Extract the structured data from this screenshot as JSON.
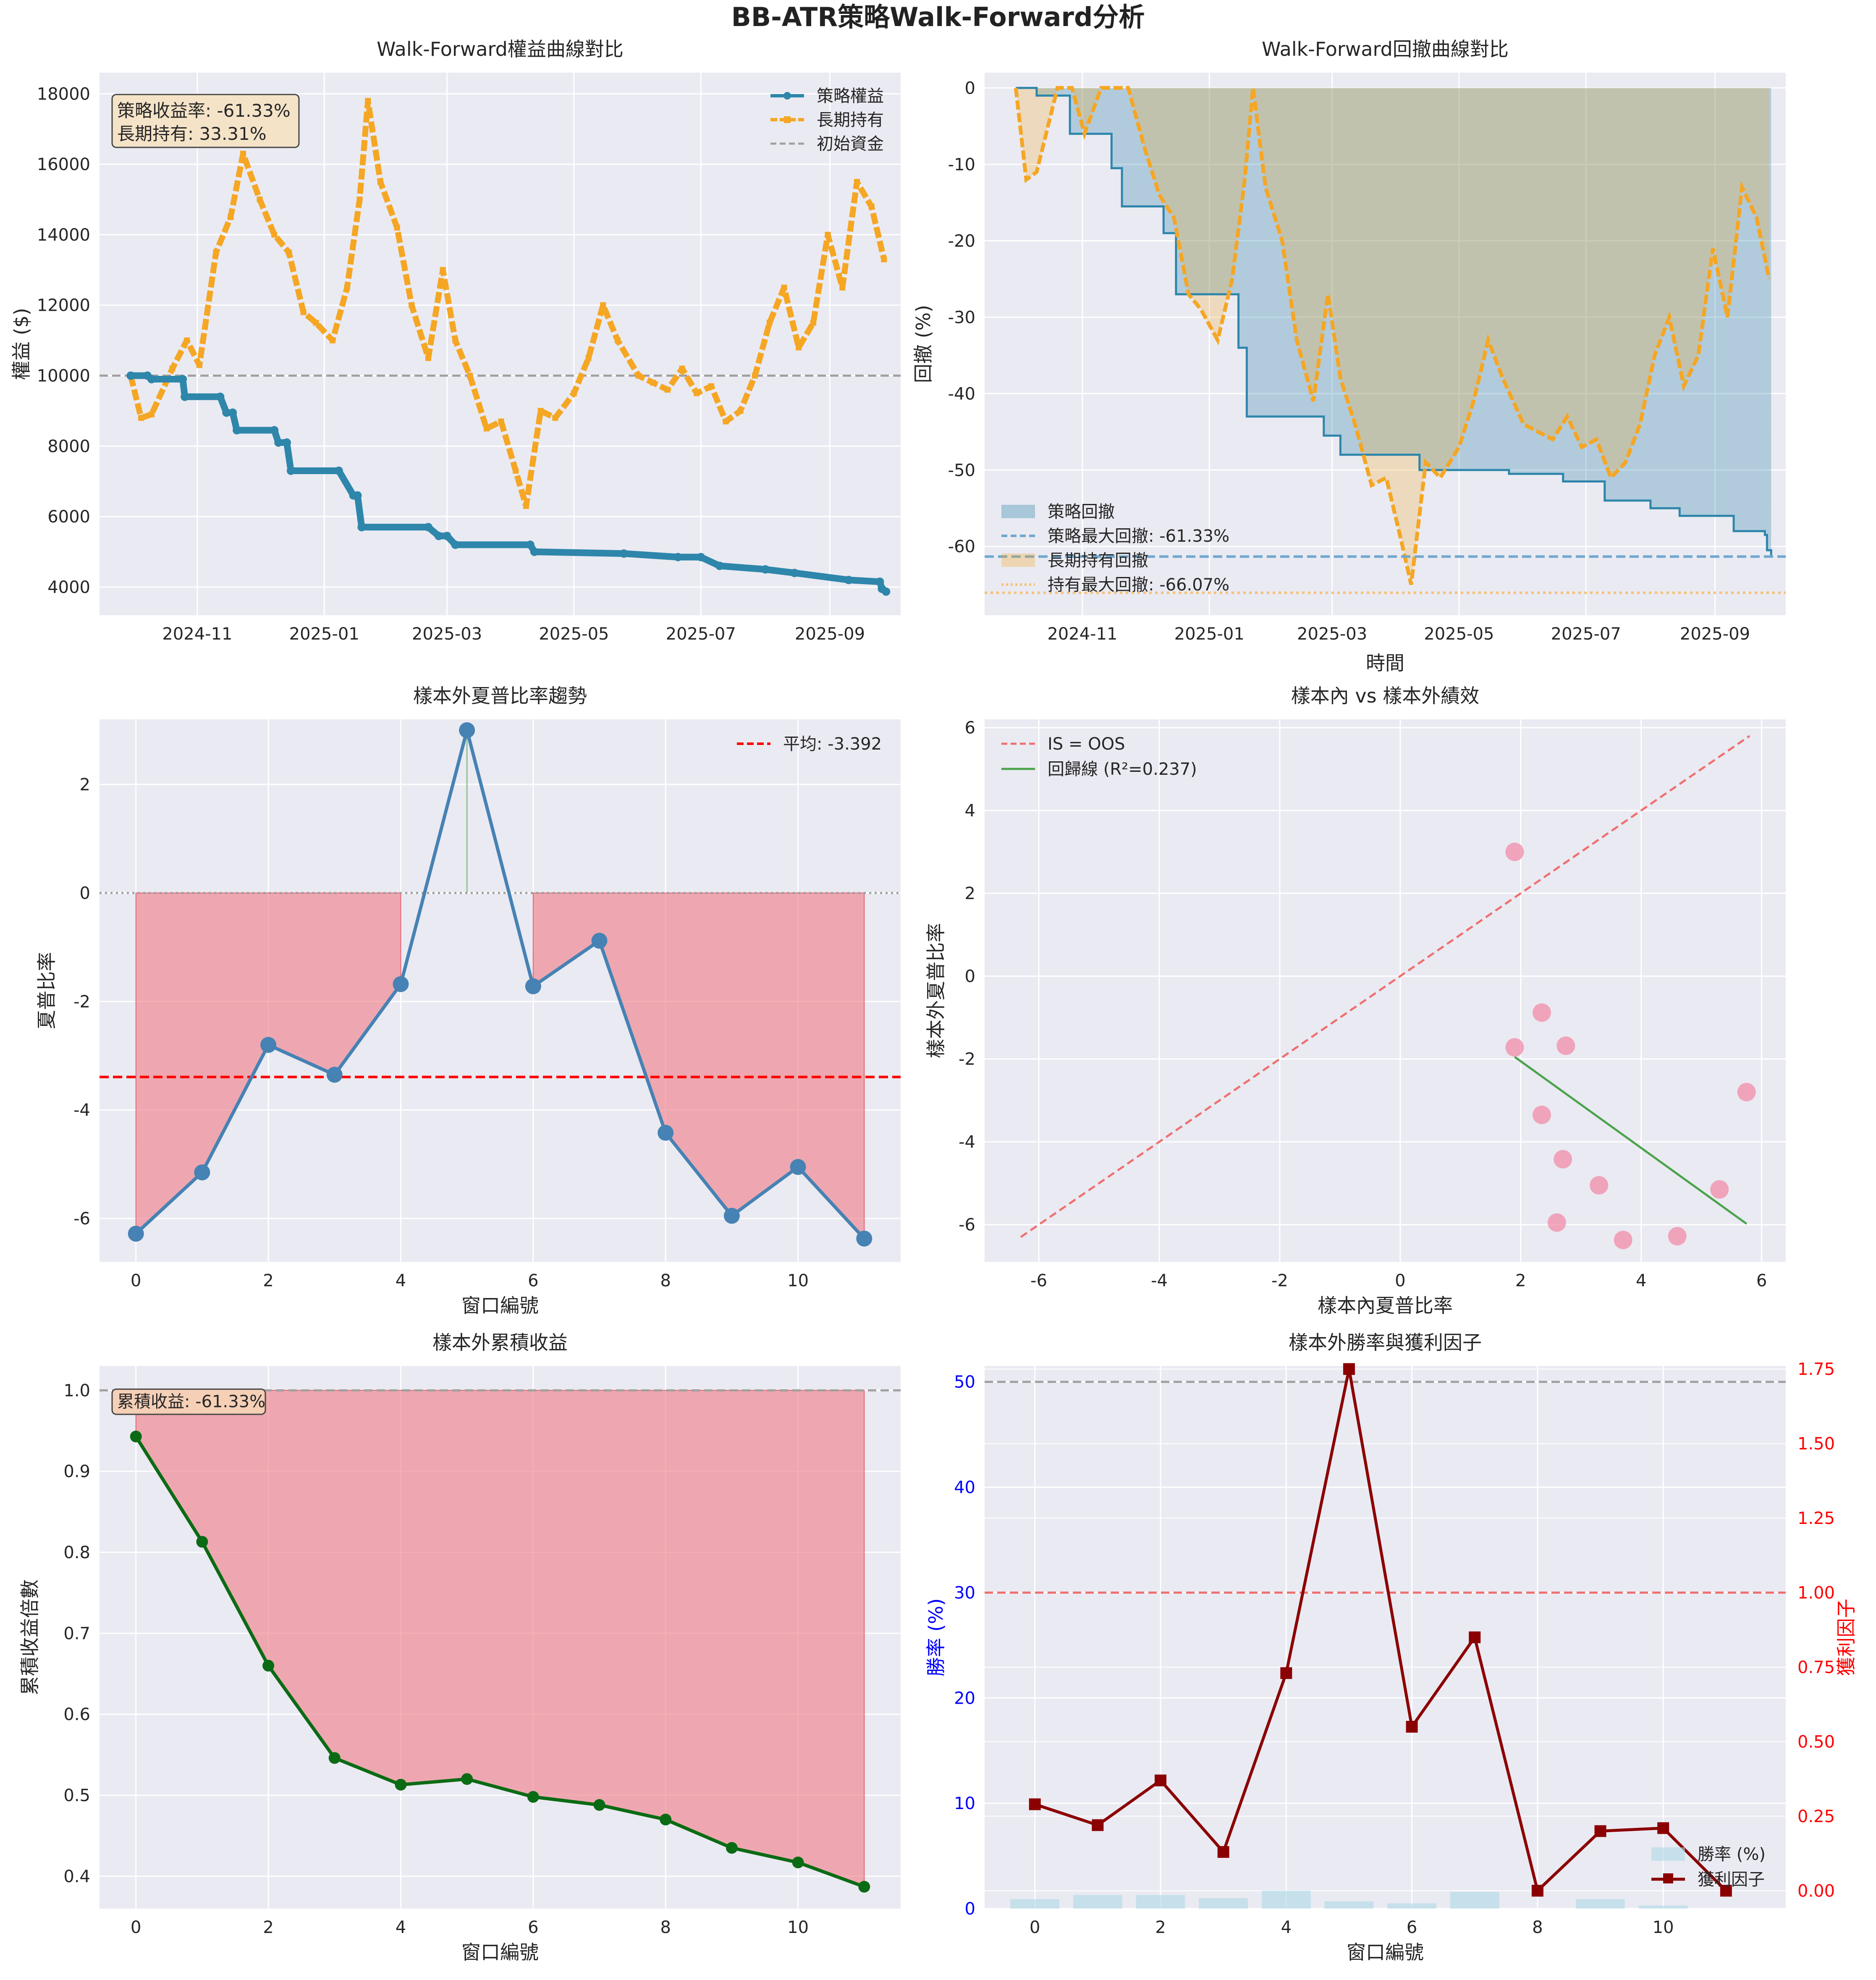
{
  "figure_title": "BB-ATR策略Walk-Forward分析",
  "chart_data": [
    {
      "id": "equity",
      "type": "line",
      "title": "Walk-Forward權益曲線對比",
      "xlabel": "",
      "ylabel": "權益 ($)",
      "x_range": [
        "2024-09-15",
        "2025-10-05"
      ],
      "x_ticks": [
        "2024-11",
        "2025-01",
        "2025-03",
        "2025-05",
        "2025-07",
        "2025-09"
      ],
      "ylim": [
        3200,
        18600
      ],
      "y_ticks": [
        4000,
        6000,
        8000,
        10000,
        12000,
        14000,
        16000,
        18000
      ],
      "grid": true,
      "legend": "top-right",
      "annotation": "策略收益率: -61.33%\n長期持有: 33.31%",
      "series": [
        {
          "name": "策略權益",
          "style": "solid-dot",
          "color": "#2e86ab",
          "x": [
            "2024-09-30",
            "2024-10-08",
            "2024-10-10",
            "2024-10-25",
            "2024-10-26",
            "2024-11-12",
            "2024-11-15",
            "2024-11-18",
            "2024-11-20",
            "2024-12-08",
            "2024-12-10",
            "2024-12-14",
            "2024-12-16",
            "2025-01-08",
            "2025-01-15",
            "2025-01-17",
            "2025-01-19",
            "2025-02-20",
            "2025-02-25",
            "2025-03-01",
            "2025-03-05",
            "2025-04-10",
            "2025-04-12",
            "2025-05-25",
            "2025-06-20",
            "2025-07-01",
            "2025-07-10",
            "2025-08-01",
            "2025-08-15",
            "2025-09-10",
            "2025-09-25",
            "2025-09-26",
            "2025-09-28"
          ],
          "values": [
            10000,
            10000,
            9900,
            9900,
            9400,
            9400,
            8950,
            8950,
            8450,
            8450,
            8100,
            8100,
            7300,
            7300,
            6600,
            6600,
            5700,
            5700,
            5450,
            5450,
            5200,
            5200,
            5000,
            4950,
            4850,
            4850,
            4600,
            4500,
            4400,
            4200,
            4150,
            3950,
            3870
          ]
        },
        {
          "name": "長期持有",
          "style": "dashed-square",
          "color": "#f5a623",
          "x": [
            "2024-09-30",
            "2024-10-05",
            "2024-10-10",
            "2024-10-20",
            "2024-10-27",
            "2024-11-02",
            "2024-11-10",
            "2024-11-17",
            "2024-11-23",
            "2024-12-01",
            "2024-12-08",
            "2024-12-15",
            "2024-12-22",
            "2024-12-28",
            "2025-01-05",
            "2025-01-12",
            "2025-01-18",
            "2025-01-22",
            "2025-01-28",
            "2025-02-05",
            "2025-02-12",
            "2025-02-20",
            "2025-02-27",
            "2025-03-05",
            "2025-03-12",
            "2025-03-20",
            "2025-03-27",
            "2025-04-03",
            "2025-04-08",
            "2025-04-15",
            "2025-04-22",
            "2025-05-01",
            "2025-05-08",
            "2025-05-15",
            "2025-05-22",
            "2025-06-01",
            "2025-06-08",
            "2025-06-15",
            "2025-06-22",
            "2025-06-29",
            "2025-07-06",
            "2025-07-13",
            "2025-07-20",
            "2025-07-27",
            "2025-08-03",
            "2025-08-10",
            "2025-08-17",
            "2025-08-24",
            "2025-08-31",
            "2025-09-07",
            "2025-09-14",
            "2025-09-21",
            "2025-09-27"
          ],
          "values": [
            10000,
            8800,
            8900,
            10200,
            11000,
            10300,
            13500,
            14500,
            16300,
            15000,
            14000,
            13500,
            11800,
            11500,
            11000,
            12500,
            15000,
            17800,
            15500,
            14200,
            12000,
            10500,
            13000,
            11000,
            10000,
            8500,
            8700,
            7300,
            6300,
            9000,
            8800,
            9500,
            10500,
            12000,
            11000,
            10000,
            9800,
            9600,
            10200,
            9500,
            9700,
            8700,
            9000,
            10000,
            11500,
            12500,
            10800,
            11500,
            14000,
            12500,
            15500,
            14800,
            13300
          ]
        }
      ],
      "reference_line": {
        "name": "初始資金",
        "value": 10000,
        "color": "#a0a0a0",
        "style": "dashed"
      }
    },
    {
      "id": "drawdown",
      "type": "area",
      "title": "Walk-Forward回撤曲線對比",
      "xlabel": "時間",
      "ylabel": "回撤 (%)",
      "x_range": [
        "2024-09-15",
        "2025-10-05"
      ],
      "x_ticks": [
        "2024-11",
        "2025-01",
        "2025-03",
        "2025-05",
        "2025-07",
        "2025-09"
      ],
      "ylim": [
        -69,
        2
      ],
      "y_ticks": [
        -60,
        -50,
        -40,
        -30,
        -20,
        -10,
        0
      ],
      "grid": true,
      "legend": "bottom-left",
      "series": [
        {
          "name": "策略回撤",
          "color": "#2e86ab",
          "x": [
            "2024-09-30",
            "2024-10-08",
            "2024-10-10",
            "2024-10-25",
            "2024-10-26",
            "2024-11-12",
            "2024-11-15",
            "2024-11-18",
            "2024-11-20",
            "2024-12-08",
            "2024-12-10",
            "2024-12-14",
            "2024-12-16",
            "2025-01-08",
            "2025-01-15",
            "2025-01-17",
            "2025-01-19",
            "2025-02-20",
            "2025-02-25",
            "2025-03-01",
            "2025-03-05",
            "2025-04-10",
            "2025-04-12",
            "2025-05-25",
            "2025-06-20",
            "2025-07-01",
            "2025-07-10",
            "2025-08-01",
            "2025-08-15",
            "2025-09-10",
            "2025-09-25",
            "2025-09-26",
            "2025-09-28"
          ],
          "values": [
            0,
            0,
            -1,
            -1,
            -6,
            -6,
            -10.5,
            -10.5,
            -15.5,
            -15.5,
            -19,
            -19,
            -27,
            -27,
            -34,
            -34,
            -43,
            -43,
            -45.5,
            -45.5,
            -48,
            -48,
            -50,
            -50.5,
            -51.5,
            -51.5,
            -54,
            -55,
            -56,
            -58,
            -58.5,
            -60.5,
            -61.33
          ]
        },
        {
          "name": "長期持有回撤",
          "color": "#f5a623",
          "x": [
            "2024-09-30",
            "2024-10-05",
            "2024-10-10",
            "2024-10-20",
            "2024-10-27",
            "2024-11-02",
            "2024-11-10",
            "2024-11-17",
            "2024-11-23",
            "2024-12-01",
            "2024-12-08",
            "2024-12-15",
            "2024-12-22",
            "2024-12-28",
            "2025-01-05",
            "2025-01-12",
            "2025-01-18",
            "2025-01-22",
            "2025-01-28",
            "2025-02-05",
            "2025-02-12",
            "2025-02-20",
            "2025-02-27",
            "2025-03-05",
            "2025-03-12",
            "2025-03-20",
            "2025-03-27",
            "2025-04-03",
            "2025-04-08",
            "2025-04-15",
            "2025-04-22",
            "2025-05-01",
            "2025-05-08",
            "2025-05-15",
            "2025-05-22",
            "2025-06-01",
            "2025-06-08",
            "2025-06-15",
            "2025-06-22",
            "2025-06-29",
            "2025-07-06",
            "2025-07-13",
            "2025-07-20",
            "2025-07-27",
            "2025-08-03",
            "2025-08-10",
            "2025-08-17",
            "2025-08-24",
            "2025-08-31",
            "2025-09-07",
            "2025-09-14",
            "2025-09-21",
            "2025-09-27"
          ],
          "values": [
            0,
            -12,
            -11,
            0,
            0,
            -6,
            0,
            0,
            0,
            -8,
            -14,
            -17,
            -27,
            -29,
            -33,
            -25,
            -12,
            0,
            -13,
            -20,
            -33,
            -41,
            -27,
            -38,
            -44,
            -52,
            -51,
            -59,
            -65,
            -49,
            -51,
            -47,
            -41,
            -33,
            -38,
            -44,
            -45,
            -46,
            -43,
            -47,
            -46,
            -51,
            -49,
            -44,
            -35,
            -30,
            -39,
            -35,
            -21,
            -30,
            -13,
            -17,
            -25
          ]
        }
      ],
      "reference_lines": [
        {
          "name": "策略最大回撤: -61.33%",
          "value": -61.33,
          "color": "#6fa8cf",
          "style": "dashed"
        },
        {
          "name": "持有最大回撤: -66.07%",
          "value": -66.07,
          "color": "#f5c27a",
          "style": "dotted"
        }
      ]
    },
    {
      "id": "oos_sharpe",
      "type": "line",
      "title": "樣本外夏普比率趨勢",
      "xlabel": "窗口編號",
      "ylabel": "夏普比率",
      "xlim": [
        -0.55,
        11.55
      ],
      "x_ticks": [
        0,
        2,
        4,
        6,
        8,
        10
      ],
      "ylim": [
        -6.8,
        3.2
      ],
      "y_ticks": [
        -6,
        -4,
        -2,
        0,
        2
      ],
      "grid": true,
      "legend": "top-right",
      "x": [
        0,
        1,
        2,
        3,
        4,
        5,
        6,
        7,
        8,
        9,
        10,
        11
      ],
      "series": [
        {
          "name": "",
          "color": "#4682b4",
          "values": [
            -6.28,
            -5.15,
            -2.8,
            -3.35,
            -1.68,
            3.0,
            -1.72,
            -0.88,
            -4.42,
            -5.95,
            -5.05,
            -6.37
          ]
        }
      ],
      "reference_line": {
        "name": "平均: -3.392",
        "value": -3.392,
        "color": "#ff0000",
        "style": "dashed"
      }
    },
    {
      "id": "is_vs_oos",
      "type": "scatter",
      "title": "樣本內 vs 樣本外績效",
      "xlabel": "樣本內夏普比率",
      "ylabel": "樣本外夏普比率",
      "xlim": [
        -6.9,
        6.4
      ],
      "x_ticks": [
        -6,
        -4,
        -2,
        0,
        2,
        4,
        6
      ],
      "ylim": [
        -6.9,
        6.2
      ],
      "y_ticks": [
        -6,
        -4,
        -2,
        0,
        2,
        4,
        6
      ],
      "grid": true,
      "legend": "top-left",
      "points": {
        "color": "#f08ca8",
        "x": [
          1.9,
          2.35,
          1.9,
          2.75,
          2.35,
          2.7,
          3.3,
          5.3,
          5.75,
          2.6,
          3.7,
          4.6
        ],
        "y": [
          3.0,
          -0.88,
          -1.72,
          -1.68,
          -3.35,
          -4.42,
          -5.05,
          -5.15,
          -2.8,
          -5.95,
          -6.37,
          -6.28
        ]
      },
      "lines": [
        {
          "name": "IS = OOS",
          "color": "#ef7070",
          "style": "dashed",
          "x": [
            -6.3,
            5.8
          ],
          "y": [
            -6.3,
            5.8
          ]
        },
        {
          "name": "回歸線 (R²=0.237)",
          "color": "#4aa34a",
          "style": "solid",
          "x": [
            1.9,
            5.75
          ],
          "y": [
            -1.95,
            -5.98
          ]
        }
      ]
    },
    {
      "id": "cumulative",
      "type": "area",
      "title": "樣本外累積收益",
      "xlabel": "窗口編號",
      "ylabel": "累積收益倍數",
      "xlim": [
        -0.55,
        11.55
      ],
      "x_ticks": [
        0,
        2,
        4,
        6,
        8,
        10
      ],
      "ylim": [
        0.36,
        1.03
      ],
      "y_ticks": [
        0.4,
        0.5,
        0.6,
        0.7,
        0.8,
        0.9,
        1.0
      ],
      "grid": true,
      "annotation": "累積收益: -61.33%",
      "x": [
        0,
        1,
        2,
        3,
        4,
        5,
        6,
        7,
        8,
        9,
        10,
        11
      ],
      "series": [
        {
          "name": "",
          "color": "#0b6b14",
          "values": [
            0.943,
            0.813,
            0.66,
            0.546,
            0.513,
            0.52,
            0.498,
            0.488,
            0.47,
            0.435,
            0.417,
            0.387
          ]
        }
      ],
      "reference_line": {
        "value": 1.0,
        "color": "#a0a0a0",
        "style": "dashed"
      }
    },
    {
      "id": "winrate_pf",
      "type": "bar",
      "title": "樣本外勝率與獲利因子",
      "xlabel": "窗口編號",
      "ylabel": "勝率 (%)",
      "ylabel_right": "獲利因子",
      "xlim": [
        -0.8,
        11.95
      ],
      "x_ticks": [
        0,
        2,
        4,
        6,
        8,
        10
      ],
      "ylim": [
        0,
        51.5
      ],
      "y_ticks": [
        0,
        10,
        20,
        30,
        40,
        50
      ],
      "ylim_right": [
        -0.06,
        1.76
      ],
      "y_ticks_right": [
        0.0,
        0.25,
        0.5,
        0.75,
        1.0,
        1.25,
        1.5,
        1.75
      ],
      "grid": true,
      "legend": "bottom-right",
      "x": [
        0,
        1,
        2,
        3,
        4,
        5,
        6,
        7,
        8,
        9,
        10,
        11
      ],
      "series": [
        {
          "name": "勝率 (%)",
          "axis": "left",
          "color": "#add8e6",
          "values": [
            0.9,
            1.3,
            1.3,
            1.0,
            1.7,
            0.7,
            0.5,
            1.6,
            0.0,
            0.9,
            0.3,
            0.0
          ]
        },
        {
          "name": "獲利因子",
          "axis": "right",
          "color": "#8b0000",
          "values": [
            0.29,
            0.22,
            0.37,
            0.13,
            0.73,
            1.75,
            0.55,
            0.85,
            0.0,
            0.2,
            0.21,
            0.0
          ]
        }
      ],
      "reference_lines": [
        {
          "axis": "left",
          "value": 50,
          "color": "#a0a0a0",
          "style": "dashed"
        },
        {
          "axis": "right",
          "value": 1.0,
          "color": "#ef7070",
          "style": "dashed"
        }
      ]
    }
  ]
}
